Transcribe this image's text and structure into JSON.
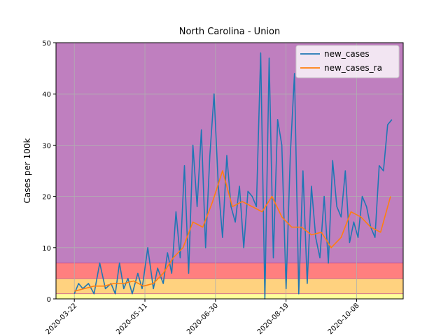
{
  "chart_data": {
    "type": "line",
    "title": "North Carolina - Union",
    "xlabel": "",
    "ylabel": "Cases per 100k",
    "ylim": [
      0,
      50
    ],
    "xlim": [
      "2020-03-09",
      "2020-11-10"
    ],
    "yticks": [
      0,
      10,
      20,
      30,
      40,
      50
    ],
    "xticks": [
      "2020-03-22",
      "2020-05-11",
      "2020-06-30",
      "2020-08-19",
      "2020-10-08"
    ],
    "grid": true,
    "legend_position": "top-right",
    "bands": [
      {
        "from": 0,
        "to": 1,
        "color": "#ffff99"
      },
      {
        "from": 1,
        "to": 4,
        "color": "#ffd27f"
      },
      {
        "from": 4,
        "to": 7,
        "color": "#ff7f7f"
      },
      {
        "from": 7,
        "to": 50,
        "color": "#bf7fbf"
      }
    ],
    "series": [
      {
        "name": "new_cases",
        "color": "#1f77b4",
        "x": [
          "2020-03-22",
          "2020-03-25",
          "2020-03-28",
          "2020-04-01",
          "2020-04-05",
          "2020-04-09",
          "2020-04-13",
          "2020-04-17",
          "2020-04-20",
          "2020-04-23",
          "2020-04-26",
          "2020-04-29",
          "2020-05-02",
          "2020-05-06",
          "2020-05-09",
          "2020-05-13",
          "2020-05-17",
          "2020-05-20",
          "2020-05-24",
          "2020-05-27",
          "2020-05-30",
          "2020-06-02",
          "2020-06-05",
          "2020-06-08",
          "2020-06-11",
          "2020-06-14",
          "2020-06-17",
          "2020-06-20",
          "2020-06-23",
          "2020-06-26",
          "2020-06-29",
          "2020-07-02",
          "2020-07-05",
          "2020-07-08",
          "2020-07-11",
          "2020-07-14",
          "2020-07-17",
          "2020-07-20",
          "2020-07-23",
          "2020-07-26",
          "2020-07-29",
          "2020-08-01",
          "2020-08-04",
          "2020-08-07",
          "2020-08-10",
          "2020-08-13",
          "2020-08-16",
          "2020-08-19",
          "2020-08-22",
          "2020-08-25",
          "2020-08-28",
          "2020-08-31",
          "2020-09-03",
          "2020-09-06",
          "2020-09-09",
          "2020-09-12",
          "2020-09-15",
          "2020-09-18",
          "2020-09-21",
          "2020-09-24",
          "2020-09-27",
          "2020-09-30",
          "2020-10-03",
          "2020-10-06",
          "2020-10-09",
          "2020-10-12",
          "2020-10-15",
          "2020-10-18",
          "2020-10-21",
          "2020-10-24",
          "2020-10-27",
          "2020-10-30",
          "2020-11-02"
        ],
        "values": [
          1,
          3,
          2,
          3,
          1,
          7,
          2,
          3,
          1,
          7,
          2,
          4,
          1,
          5,
          2,
          10,
          2,
          6,
          3,
          9,
          5,
          17,
          8,
          26,
          5,
          30,
          18,
          33,
          10,
          28,
          40,
          22,
          12,
          28,
          18,
          15,
          22,
          10,
          21,
          20,
          18,
          48,
          0,
          47,
          8,
          35,
          30,
          2,
          28,
          44,
          1,
          25,
          3,
          22,
          12,
          8,
          20,
          7,
          27,
          18,
          16,
          25,
          11,
          15,
          12,
          20,
          18,
          14,
          12,
          26,
          25,
          34,
          35
        ]
      },
      {
        "name": "new_cases_ra",
        "color": "#ff7f0e",
        "x": [
          "2020-03-22",
          "2020-03-29",
          "2020-04-05",
          "2020-04-12",
          "2020-04-19",
          "2020-04-26",
          "2020-05-03",
          "2020-05-10",
          "2020-05-17",
          "2020-05-24",
          "2020-05-31",
          "2020-06-07",
          "2020-06-14",
          "2020-06-21",
          "2020-06-28",
          "2020-07-05",
          "2020-07-12",
          "2020-07-19",
          "2020-07-26",
          "2020-08-02",
          "2020-08-09",
          "2020-08-16",
          "2020-08-23",
          "2020-08-30",
          "2020-09-06",
          "2020-09-13",
          "2020-09-20",
          "2020-09-27",
          "2020-10-04",
          "2020-10-11",
          "2020-10-18",
          "2020-10-25",
          "2020-11-01"
        ],
        "values": [
          1.5,
          2,
          2.5,
          2.5,
          3,
          3,
          3.5,
          2.5,
          3,
          5,
          8,
          10,
          15,
          14,
          19,
          25,
          18,
          19,
          18,
          17,
          20,
          16,
          14,
          14,
          12.5,
          13,
          10,
          12,
          17,
          16,
          14,
          13,
          20
        ]
      }
    ]
  }
}
